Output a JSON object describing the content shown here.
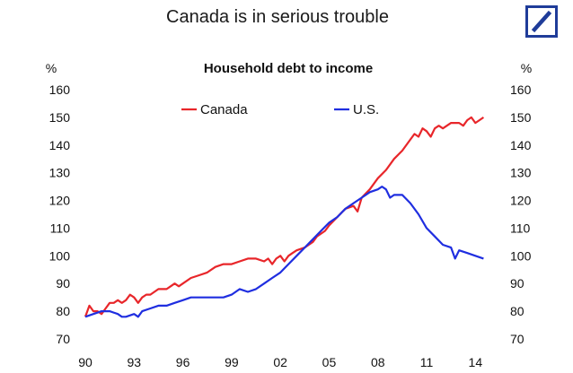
{
  "page": {
    "title": "Canada is in serious trouble",
    "logo": "deutsche-bank-slash-logo",
    "logo_color": "#1f3c99"
  },
  "chart_data": {
    "type": "line",
    "title": "Household debt to income",
    "ylabel_left": "%",
    "ylabel_right": "%",
    "ylim": [
      70,
      160
    ],
    "yticks": [
      70,
      80,
      90,
      100,
      110,
      120,
      130,
      140,
      150,
      160
    ],
    "xlim": [
      1990,
      2014.7
    ],
    "xticks": [
      {
        "value": 1990,
        "label": "90"
      },
      {
        "value": 1993,
        "label": "93"
      },
      {
        "value": 1996,
        "label": "96"
      },
      {
        "value": 1999,
        "label": "99"
      },
      {
        "value": 2002,
        "label": "02"
      },
      {
        "value": 2005,
        "label": "05"
      },
      {
        "value": 2008,
        "label": "08"
      },
      {
        "value": 2011,
        "label": "11"
      },
      {
        "value": 2014,
        "label": "14"
      }
    ],
    "grid": false,
    "legend_position": "top",
    "series": [
      {
        "name": "Canada",
        "color": "#e8262a",
        "points": [
          [
            1990.0,
            78
          ],
          [
            1990.25,
            82
          ],
          [
            1990.5,
            80
          ],
          [
            1990.75,
            80
          ],
          [
            1991.0,
            79
          ],
          [
            1991.25,
            81
          ],
          [
            1991.5,
            83
          ],
          [
            1991.75,
            83
          ],
          [
            1992.0,
            84
          ],
          [
            1992.25,
            83
          ],
          [
            1992.5,
            84
          ],
          [
            1992.75,
            86
          ],
          [
            1993.0,
            85
          ],
          [
            1993.25,
            83
          ],
          [
            1993.5,
            85
          ],
          [
            1993.75,
            86
          ],
          [
            1994.0,
            86
          ],
          [
            1994.25,
            87
          ],
          [
            1994.5,
            88
          ],
          [
            1994.75,
            88
          ],
          [
            1995.0,
            88
          ],
          [
            1995.25,
            89
          ],
          [
            1995.5,
            90
          ],
          [
            1995.75,
            89
          ],
          [
            1996.0,
            90
          ],
          [
            1996.5,
            92
          ],
          [
            1997.0,
            93
          ],
          [
            1997.5,
            94
          ],
          [
            1998.0,
            96
          ],
          [
            1998.5,
            97
          ],
          [
            1999.0,
            97
          ],
          [
            1999.5,
            98
          ],
          [
            2000.0,
            99
          ],
          [
            2000.5,
            99
          ],
          [
            2001.0,
            98
          ],
          [
            2001.25,
            99
          ],
          [
            2001.5,
            97
          ],
          [
            2001.75,
            99
          ],
          [
            2002.0,
            100
          ],
          [
            2002.25,
            98
          ],
          [
            2002.5,
            100
          ],
          [
            2002.75,
            101
          ],
          [
            2003.0,
            102
          ],
          [
            2003.5,
            103
          ],
          [
            2004.0,
            105
          ],
          [
            2004.25,
            107
          ],
          [
            2004.5,
            108
          ],
          [
            2004.75,
            109
          ],
          [
            2005.0,
            111
          ],
          [
            2005.5,
            114
          ],
          [
            2006.0,
            117
          ],
          [
            2006.5,
            118
          ],
          [
            2006.75,
            116
          ],
          [
            2007.0,
            121
          ],
          [
            2007.5,
            124
          ],
          [
            2008.0,
            128
          ],
          [
            2008.5,
            131
          ],
          [
            2009.0,
            135
          ],
          [
            2009.5,
            138
          ],
          [
            2010.0,
            142
          ],
          [
            2010.25,
            144
          ],
          [
            2010.5,
            143
          ],
          [
            2010.75,
            146
          ],
          [
            2011.0,
            145
          ],
          [
            2011.25,
            143
          ],
          [
            2011.5,
            146
          ],
          [
            2011.75,
            147
          ],
          [
            2012.0,
            146
          ],
          [
            2012.5,
            148
          ],
          [
            2013.0,
            148
          ],
          [
            2013.25,
            147
          ],
          [
            2013.5,
            149
          ],
          [
            2013.75,
            150
          ],
          [
            2014.0,
            148
          ],
          [
            2014.25,
            149
          ],
          [
            2014.5,
            150
          ]
        ]
      },
      {
        "name": "U.S.",
        "color": "#1f2ee0",
        "points": [
          [
            1990.0,
            78
          ],
          [
            1990.5,
            79
          ],
          [
            1991.0,
            80
          ],
          [
            1991.5,
            80
          ],
          [
            1992.0,
            79
          ],
          [
            1992.25,
            78
          ],
          [
            1992.5,
            78
          ],
          [
            1993.0,
            79
          ],
          [
            1993.25,
            78
          ],
          [
            1993.5,
            80
          ],
          [
            1994.0,
            81
          ],
          [
            1994.5,
            82
          ],
          [
            1995.0,
            82
          ],
          [
            1995.5,
            83
          ],
          [
            1996.0,
            84
          ],
          [
            1996.5,
            85
          ],
          [
            1997.0,
            85
          ],
          [
            1997.5,
            85
          ],
          [
            1998.0,
            85
          ],
          [
            1998.5,
            85
          ],
          [
            1999.0,
            86
          ],
          [
            1999.5,
            88
          ],
          [
            2000.0,
            87
          ],
          [
            2000.5,
            88
          ],
          [
            2001.0,
            90
          ],
          [
            2001.5,
            92
          ],
          [
            2002.0,
            94
          ],
          [
            2002.5,
            97
          ],
          [
            2003.0,
            100
          ],
          [
            2003.5,
            103
          ],
          [
            2004.0,
            106
          ],
          [
            2004.5,
            109
          ],
          [
            2005.0,
            112
          ],
          [
            2005.5,
            114
          ],
          [
            2006.0,
            117
          ],
          [
            2006.5,
            119
          ],
          [
            2007.0,
            121
          ],
          [
            2007.5,
            123
          ],
          [
            2008.0,
            124
          ],
          [
            2008.25,
            125
          ],
          [
            2008.5,
            124
          ],
          [
            2008.75,
            121
          ],
          [
            2009.0,
            122
          ],
          [
            2009.5,
            122
          ],
          [
            2010.0,
            119
          ],
          [
            2010.5,
            115
          ],
          [
            2011.0,
            110
          ],
          [
            2011.5,
            107
          ],
          [
            2012.0,
            104
          ],
          [
            2012.5,
            103
          ],
          [
            2012.75,
            99
          ],
          [
            2013.0,
            102
          ],
          [
            2013.5,
            101
          ],
          [
            2014.0,
            100
          ],
          [
            2014.5,
            99
          ]
        ]
      }
    ]
  }
}
